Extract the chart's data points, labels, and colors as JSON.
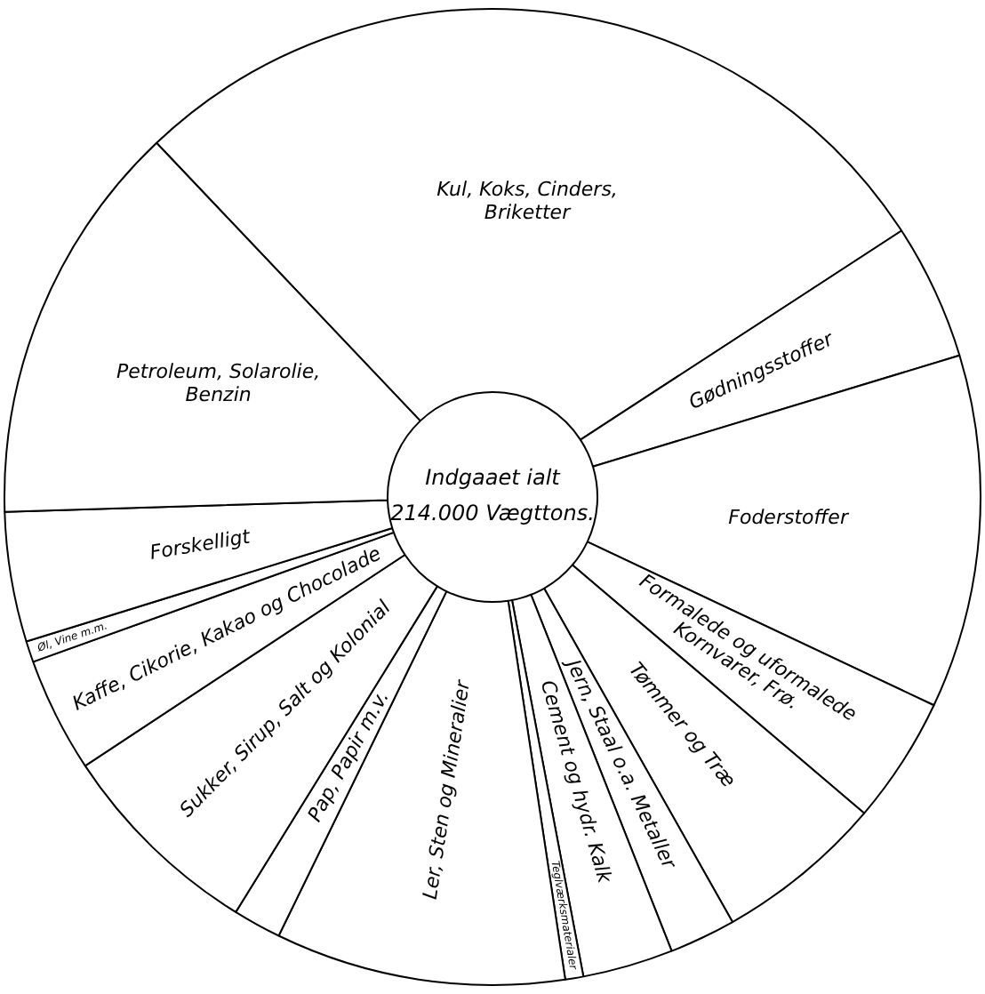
{
  "chart_data": {
    "type": "donut",
    "title": "Indgaaet ialt",
    "subtitle": "214.000 Vægttons.",
    "categories": [
      "Kul, Koks, Cinders, Briketter",
      "Gødningsstoffer",
      "Foderstoffer",
      "Formalede og uformalede Kornvarer, Frø.",
      "Tømmer og Træ",
      "Jern, Staal o.a. Metaller",
      "Cement og hydr. Kalk",
      "Teglværksmaterialer",
      "Ler, Sten og Mineralier",
      "Pap, Papir m.v.",
      "Sukker, Sirup, Salt og Kolonial",
      "Kaffe, Cikorie, Kakao og Chocolade",
      "Øl, Vine m.m.",
      "Forskelligt",
      "Petroleum, Solarolie, Benzin"
    ],
    "values": [
      27.9,
      4.5,
      11.7,
      4.2,
      5.6,
      2.2,
      3.0,
      0.6,
      9.6,
      1.6,
      6.9,
      3.8,
      0.7,
      4.3,
      13.4
    ],
    "colors": [
      "#ffffff",
      "#ffffff",
      "#ffffff",
      "#ffffff",
      "#ffffff",
      "#ffffff",
      "#ffffff",
      "#ffffff",
      "#ffffff",
      "#ffffff",
      "#ffffff",
      "#ffffff",
      "#ffffff",
      "#ffffff",
      "#ffffff"
    ],
    "legend": false
  }
}
